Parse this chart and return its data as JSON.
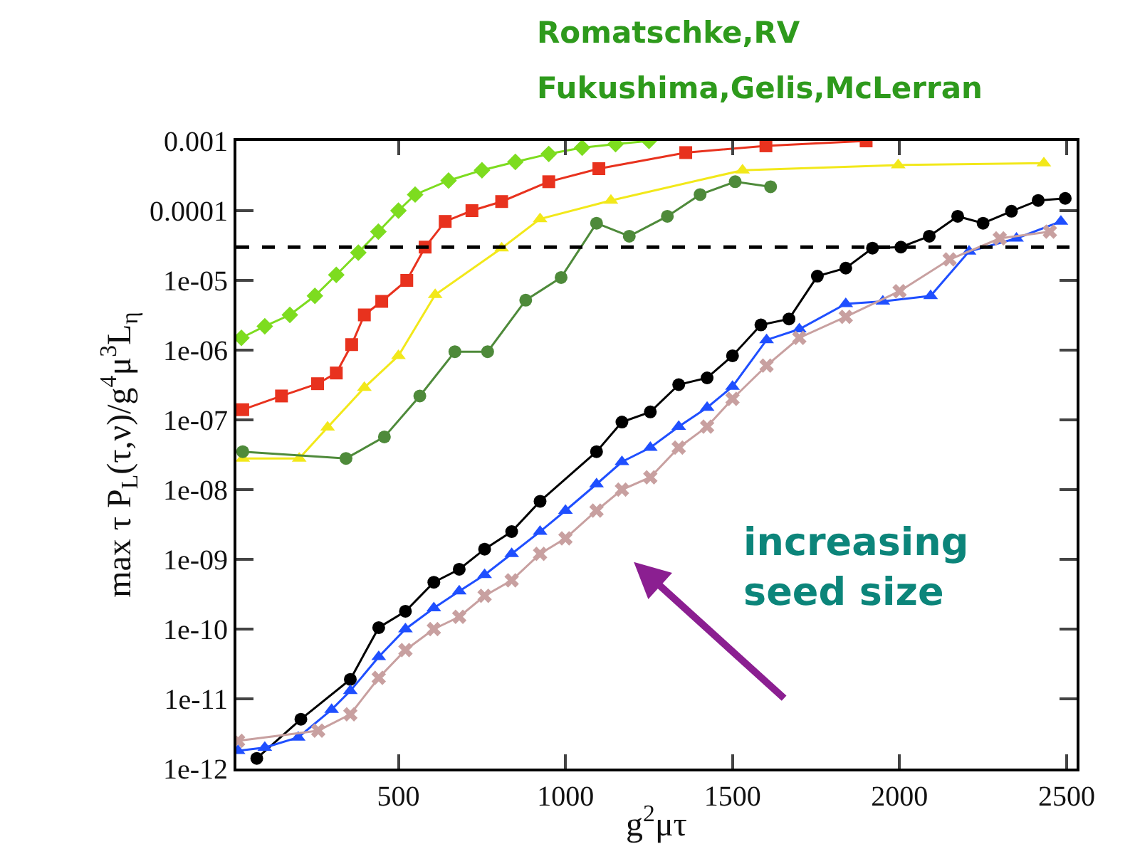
{
  "chart_data": {
    "type": "line",
    "title": "Romatschke,RV",
    "subtitle": "Fukushima,Gelis,McLerran",
    "xlabel": "g$^{2}$μτ",
    "ylabel": "max τ P$_{L}$(τ,ν)/g$^{4}$μ$^{3}$L$_{η}$",
    "annotations": [
      "increasing\nseed size"
    ],
    "log": "y",
    "grid": false,
    "line_style": "solid",
    "xlim": [
      15,
      2530
    ],
    "ylim": [
      1e-12,
      0.001
    ],
    "xticks": [
      500,
      1000,
      1500,
      2000,
      2500
    ],
    "yticks": [
      {
        "value": 0.001,
        "label": "0.001"
      },
      {
        "value": 0.0001,
        "label": "0.0001"
      },
      {
        "value": 1e-05,
        "label": "1e-05"
      },
      {
        "value": 1e-06,
        "label": "1e-06"
      },
      {
        "value": 1e-07,
        "label": "1e-07"
      },
      {
        "value": 1e-08,
        "label": "1e-08"
      },
      {
        "value": 1e-09,
        "label": "1e-09"
      },
      {
        "value": 1e-10,
        "label": "1e-10"
      },
      {
        "value": 1e-11,
        "label": "1e-11"
      },
      {
        "value": 1e-12,
        "label": "1e-12"
      }
    ],
    "ref_lines": [
      {
        "axis": "y",
        "value": 3e-05,
        "color": "#000000",
        "line_style": "dashed"
      }
    ],
    "series": [
      {
        "color": "#7ddc1f",
        "marker": "diamond",
        "x": [
          30,
          100,
          175,
          250,
          314,
          380,
          440,
          500,
          550,
          650,
          750,
          850,
          950,
          1050,
          1150,
          1250
        ],
        "values": [
          1.5e-06,
          2.2e-06,
          3.2e-06,
          6e-06,
          1.2e-05,
          2.5e-05,
          5e-05,
          0.0001,
          0.00017,
          0.00027,
          0.00038,
          0.0005,
          0.00065,
          0.0008,
          0.0009,
          0.001
        ]
      },
      {
        "color": "#e8321e",
        "marker": "square",
        "x": [
          34,
          150,
          258,
          314,
          360,
          398,
          450,
          525,
          580,
          640,
          720,
          809,
          950,
          1100,
          1360,
          1600,
          1900
        ],
        "values": [
          1.4e-07,
          2.2e-07,
          3.3e-07,
          4.7e-07,
          1.2e-06,
          3.2e-06,
          5e-06,
          1e-05,
          3e-05,
          7e-05,
          0.0001,
          0.000135,
          0.00026,
          0.0004,
          0.00068,
          0.00085,
          0.001
        ]
      },
      {
        "color": "#f2e81a",
        "marker": "triangle",
        "x": [
          34,
          203,
          288,
          398,
          500,
          610,
          809,
          924,
          1136,
          1530,
          1996,
          2432
        ],
        "values": [
          2.8e-08,
          2.8e-08,
          7.8e-08,
          2.9e-07,
          8.3e-07,
          6.2e-06,
          2.9e-05,
          7.6e-05,
          0.00014,
          0.00038,
          0.00045,
          0.00048
        ]
      },
      {
        "color": "#4e8a3a",
        "marker": "circle",
        "x": [
          34,
          343,
          458,
          564,
          669,
          767,
          881,
          987,
          1093,
          1191,
          1305,
          1403,
          1508,
          1614
        ],
        "values": [
          3.5e-08,
          2.8e-08,
          5.7e-08,
          2.2e-07,
          9.5e-07,
          9.5e-07,
          5.2e-06,
          1.1e-05,
          6.6e-05,
          4.3e-05,
          8.3e-05,
          0.00017,
          0.00026,
          0.00022
        ]
      },
      {
        "color": "#000000",
        "marker": "circle",
        "x": [
          76,
          208,
          356,
          441,
          521,
          606,
          682,
          758,
          839,
          924,
          1093,
          1169,
          1254,
          1339,
          1424,
          1500,
          1585,
          1669,
          1754,
          1839,
          1919,
          2004,
          2089,
          2174,
          2250,
          2335,
          2415,
          2496
        ],
        "values": [
          1.4e-12,
          5.1e-12,
          1.9e-11,
          1.05e-10,
          1.8e-10,
          4.7e-10,
          7.2e-10,
          1.4e-09,
          2.5e-09,
          6.8e-09,
          3.5e-08,
          9.3e-08,
          1.3e-07,
          3.2e-07,
          4e-07,
          8.3e-07,
          2.3e-06,
          2.8e-06,
          1.15e-05,
          1.5e-05,
          2.9e-05,
          3e-05,
          4.3e-05,
          8.3e-05,
          6.6e-05,
          9.8e-05,
          0.00014,
          0.00015
        ]
      },
      {
        "color": "#1f4fff",
        "marker": "triangle",
        "x": [
          20,
          100,
          200,
          300,
          356,
          441,
          521,
          606,
          682,
          758,
          839,
          924,
          1000,
          1093,
          1169,
          1254,
          1339,
          1424,
          1500,
          1602,
          1700,
          1839,
          1950,
          2093,
          2208,
          2350,
          2483
        ],
        "values": [
          1.8e-12,
          2e-12,
          2.8e-12,
          7e-12,
          1.3e-11,
          4e-11,
          1e-10,
          2e-10,
          3.5e-10,
          6e-10,
          1.2e-09,
          2.5e-09,
          5e-09,
          1.2e-08,
          2.5e-08,
          4e-08,
          8e-08,
          1.5e-07,
          3e-07,
          1.4e-06,
          2e-06,
          4.6e-06,
          5e-06,
          6e-06,
          2.6e-05,
          4e-05,
          7e-05
        ]
      },
      {
        "color": "#c8a0a0",
        "marker": "cross",
        "x": [
          20,
          260,
          356,
          441,
          521,
          606,
          682,
          758,
          839,
          924,
          1000,
          1093,
          1169,
          1254,
          1339,
          1424,
          1500,
          1602,
          1700,
          1839,
          2000,
          2150,
          2300,
          2450
        ],
        "values": [
          2.5e-12,
          3.5e-12,
          6e-12,
          2e-11,
          5e-11,
          1e-10,
          1.5e-10,
          3e-10,
          5e-10,
          1.2e-09,
          2e-09,
          5e-09,
          1e-08,
          1.5e-08,
          4e-08,
          8e-08,
          2e-07,
          6e-07,
          1.5e-06,
          3e-06,
          7e-06,
          2e-05,
          4e-05,
          5e-05
        ]
      }
    ]
  }
}
